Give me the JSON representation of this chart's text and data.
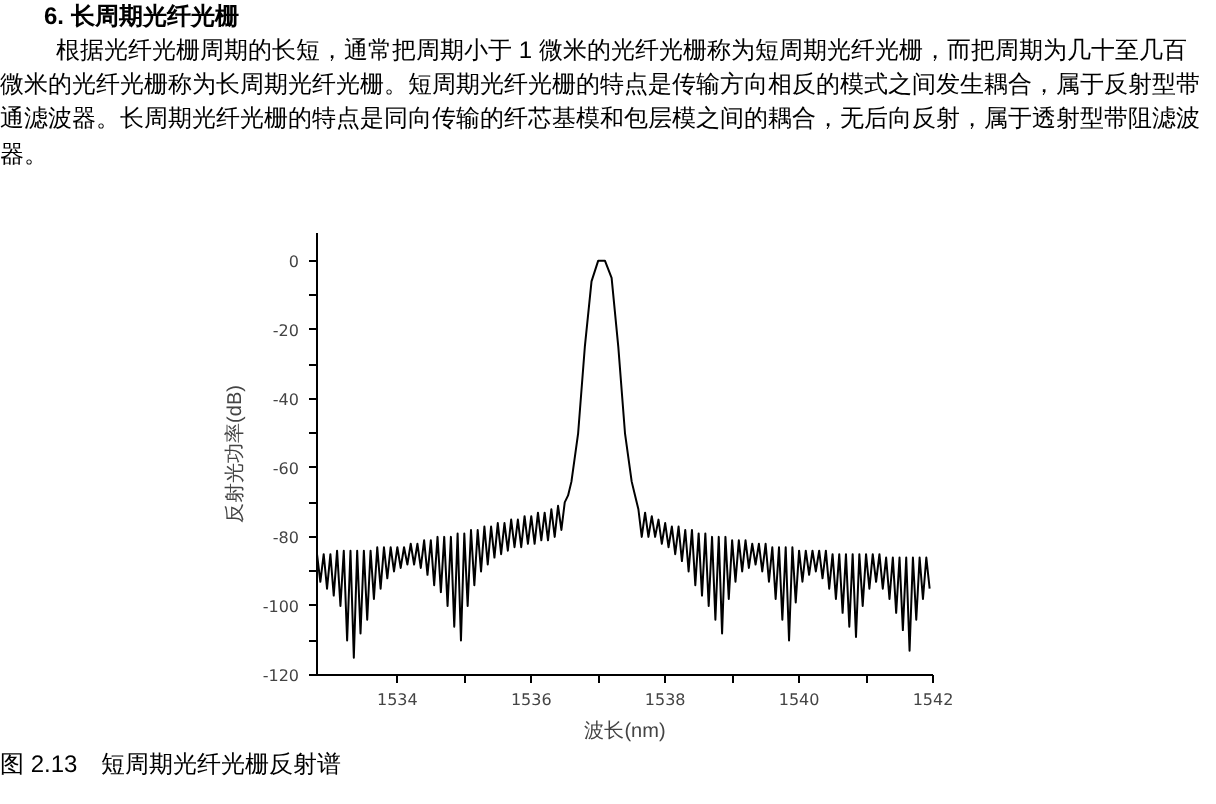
{
  "chart_data": {
    "type": "line",
    "title": "6.    长周期光纤光栅",
    "annotations": [
      "根据光纤光栅周期的长短，通常把周期小于 1 微米的光纤光栅称为短周期光纤光栅，而把周期为几十至几百微米的光纤光栅称为长周期光纤光栅。短周期光纤光栅的特点是传输方向相反的模式之间发生耦合，属于反射型带通滤波器。长周期光纤光栅的特点是同向传输的纤芯基模和包层模之间的耦合，无后向反射，属于透射型带阻滤波器。",
      "图 2.13　短周期光纤光栅反射谱"
    ],
    "xlabel": "波长(nm)",
    "ylabel": "反射光功率(dB)",
    "xlim": [
      1532.8,
      1542
    ],
    "ylim": [
      -120,
      8
    ],
    "xticks": [
      1534,
      {
        "value": 1535,
        "label": null
      },
      1536,
      {
        "value": 1537,
        "label": null
      },
      1538,
      {
        "value": 1539,
        "label": null
      },
      1540,
      {
        "value": 1541,
        "label": null
      },
      1542
    ],
    "yticks": [
      -120,
      {
        "value": -110,
        "label": null
      },
      -100,
      {
        "value": -90,
        "label": null
      },
      -80,
      {
        "value": -70,
        "label": null
      },
      -60,
      {
        "value": -50,
        "label": null
      },
      -40,
      {
        "value": -30,
        "label": null
      },
      -20,
      {
        "value": -10,
        "label": null
      },
      0
    ],
    "grid": false,
    "line_style": "solid",
    "series": [
      {
        "color": "#000000",
        "x": [
          1532.8,
          1532.85,
          1532.9,
          1532.95,
          1533.0,
          1533.05,
          1533.1,
          1533.15,
          1533.2,
          1533.25,
          1533.3,
          1533.35,
          1533.4,
          1533.45,
          1533.5,
          1533.55,
          1533.6,
          1533.65,
          1533.7,
          1533.75,
          1533.8,
          1533.85,
          1533.9,
          1533.95,
          1534.0,
          1534.05,
          1534.1,
          1534.15,
          1534.2,
          1534.25,
          1534.3,
          1534.35,
          1534.4,
          1534.45,
          1534.5,
          1534.55,
          1534.6,
          1534.65,
          1534.7,
          1534.75,
          1534.8,
          1534.85,
          1534.9,
          1534.95,
          1535.0,
          1535.05,
          1535.1,
          1535.15,
          1535.2,
          1535.25,
          1535.3,
          1535.35,
          1535.4,
          1535.45,
          1535.5,
          1535.55,
          1535.6,
          1535.65,
          1535.7,
          1535.75,
          1535.8,
          1535.85,
          1535.9,
          1535.95,
          1536.0,
          1536.05,
          1536.1,
          1536.15,
          1536.2,
          1536.25,
          1536.3,
          1536.35,
          1536.4,
          1536.45,
          1536.5,
          1536.55,
          1536.6,
          1536.7,
          1536.8,
          1536.9,
          1537.0,
          1537.1,
          1537.2,
          1537.3,
          1537.4,
          1537.5,
          1537.55,
          1537.6,
          1537.65,
          1537.7,
          1537.75,
          1537.8,
          1537.85,
          1537.9,
          1537.95,
          1538.0,
          1538.05,
          1538.1,
          1538.15,
          1538.2,
          1538.25,
          1538.3,
          1538.35,
          1538.4,
          1538.45,
          1538.5,
          1538.55,
          1538.6,
          1538.65,
          1538.7,
          1538.75,
          1538.8,
          1538.85,
          1538.9,
          1538.95,
          1539.0,
          1539.05,
          1539.1,
          1539.15,
          1539.2,
          1539.25,
          1539.3,
          1539.35,
          1539.4,
          1539.45,
          1539.5,
          1539.55,
          1539.6,
          1539.65,
          1539.7,
          1539.75,
          1539.8,
          1539.85,
          1539.9,
          1539.95,
          1540.0,
          1540.05,
          1540.1,
          1540.15,
          1540.2,
          1540.25,
          1540.3,
          1540.35,
          1540.4,
          1540.45,
          1540.5,
          1540.55,
          1540.6,
          1540.65,
          1540.7,
          1540.75,
          1540.8,
          1540.85,
          1540.9,
          1540.95,
          1541.0,
          1541.05,
          1541.1,
          1541.15,
          1541.2,
          1541.25,
          1541.3,
          1541.35,
          1541.4,
          1541.45,
          1541.5,
          1541.55,
          1541.6,
          1541.65,
          1541.7,
          1541.75,
          1541.8,
          1541.85,
          1541.9,
          1541.95
        ],
        "values": [
          -85,
          -93,
          -85,
          -95,
          -85,
          -97,
          -84,
          -100,
          -84,
          -110,
          -84,
          -115,
          -84,
          -108,
          -84,
          -104,
          -84,
          -98,
          -83,
          -95,
          -83,
          -92,
          -83,
          -90,
          -83,
          -89,
          -83,
          -88,
          -82,
          -88,
          -82,
          -89,
          -81,
          -91,
          -81,
          -94,
          -80,
          -96,
          -80,
          -100,
          -80,
          -106,
          -79,
          -110,
          -79,
          -100,
          -78,
          -94,
          -78,
          -90,
          -77,
          -88,
          -77,
          -86,
          -76,
          -85,
          -76,
          -84,
          -75,
          -83,
          -75,
          -83,
          -74,
          -82,
          -74,
          -82,
          -73,
          -81,
          -73,
          -81,
          -72,
          -80,
          -71,
          -78,
          -70,
          -68,
          -64,
          -50,
          -25,
          -6,
          0,
          0,
          -5,
          -25,
          -50,
          -64,
          -68,
          -72,
          -80,
          -73,
          -80,
          -74,
          -80,
          -75,
          -82,
          -76,
          -83,
          -77,
          -85,
          -77,
          -87,
          -78,
          -90,
          -78,
          -94,
          -79,
          -97,
          -79,
          -100,
          -80,
          -104,
          -80,
          -108,
          -80,
          -98,
          -81,
          -93,
          -81,
          -90,
          -81,
          -89,
          -82,
          -88,
          -82,
          -90,
          -82,
          -93,
          -83,
          -98,
          -83,
          -104,
          -83,
          -110,
          -83,
          -99,
          -84,
          -93,
          -84,
          -91,
          -84,
          -90,
          -84,
          -92,
          -84,
          -95,
          -85,
          -98,
          -85,
          -102,
          -85,
          -106,
          -85,
          -109,
          -85,
          -100,
          -85,
          -95,
          -85,
          -93,
          -85,
          -95,
          -86,
          -98,
          -86,
          -102,
          -86,
          -107,
          -86,
          -113,
          -86,
          -104,
          -86,
          -98,
          -86,
          -95
        ]
      }
    ]
  }
}
